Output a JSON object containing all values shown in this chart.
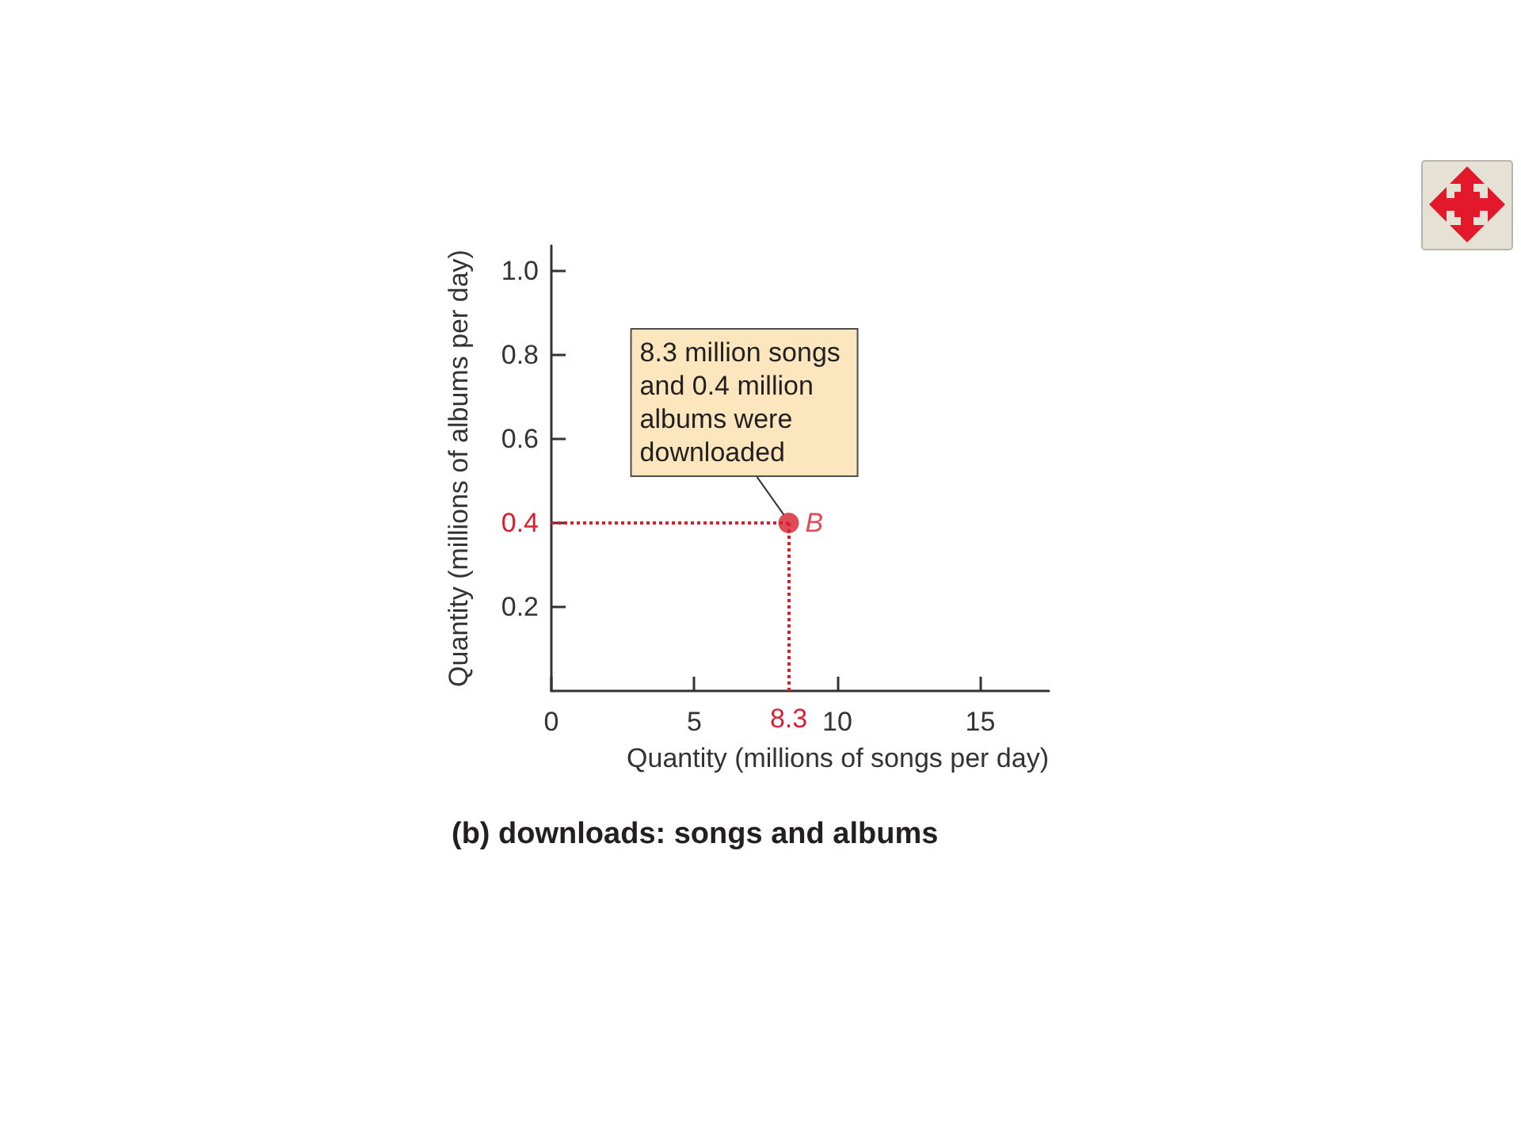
{
  "chart_data": {
    "type": "scatter",
    "title": "(b) downloads: songs and albums",
    "xlabel": "Quantity (millions of songs per day)",
    "ylabel": "Quantity (millions of albums per day)",
    "annotations": [
      {
        "text": "8.3 million songs and 0.4 million albums were downloaded",
        "x": 8.3,
        "y": 0.4
      }
    ],
    "x": [
      8.3
    ],
    "series": [
      {
        "name": "B",
        "color": "#d71f30",
        "values": [
          0.4
        ]
      }
    ],
    "xlim": [
      0,
      17.4
    ],
    "ylim": [
      0,
      1.06
    ],
    "xticks": [
      0,
      5,
      10,
      15
    ],
    "yticks": [
      0.2,
      {
        "value": 0.4,
        "label": null
      },
      0.6,
      0.8,
      {
        "value": 1.0,
        "label": "1.0"
      }
    ],
    "ref_lines": [
      {
        "axis": "x",
        "value": 8.3,
        "label": "8.3",
        "color": "#d71f30",
        "line_style": "dotted"
      },
      {
        "axis": "y",
        "value": 0.4,
        "label": "0.4",
        "color": "#d71f30",
        "line_style": "dotted"
      }
    ],
    "grid": false,
    "legend": false,
    "marker": "circle"
  }
}
